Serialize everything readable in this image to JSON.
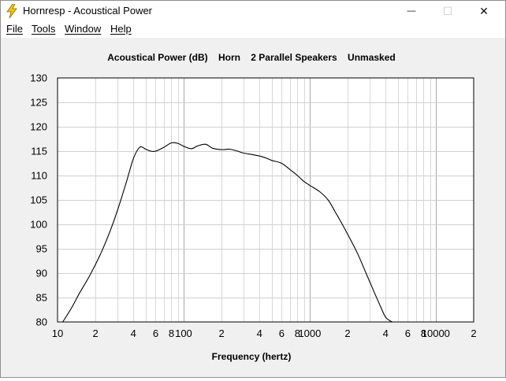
{
  "window": {
    "title": "Hornresp - Acoustical Power",
    "minimize_glyph": "—",
    "maximize_glyph": "☐",
    "close_glyph": "✕"
  },
  "menu": {
    "items": [
      {
        "label": "File"
      },
      {
        "label": "Tools"
      },
      {
        "label": "Window"
      },
      {
        "label": "Help"
      }
    ]
  },
  "chart_data": {
    "type": "line",
    "title": "Acoustical Power (dB)    Horn    2 Parallel Speakers    Unmasked",
    "xlabel": "Frequency (hertz)",
    "ylabel": "",
    "x_scale": "log",
    "xlim": [
      10,
      20000
    ],
    "ylim": [
      80,
      130
    ],
    "grid": true,
    "x_tick_labels": [
      {
        "value": 10,
        "label": "10"
      },
      {
        "value": 20,
        "label": "2"
      },
      {
        "value": 40,
        "label": "4"
      },
      {
        "value": 60,
        "label": "6"
      },
      {
        "value": 80,
        "label": "8"
      },
      {
        "value": 100,
        "label": "100"
      },
      {
        "value": 200,
        "label": "2"
      },
      {
        "value": 400,
        "label": "4"
      },
      {
        "value": 600,
        "label": "6"
      },
      {
        "value": 800,
        "label": "8"
      },
      {
        "value": 1000,
        "label": "1000"
      },
      {
        "value": 2000,
        "label": "2"
      },
      {
        "value": 4000,
        "label": "4"
      },
      {
        "value": 6000,
        "label": "6"
      },
      {
        "value": 8000,
        "label": "8"
      },
      {
        "value": 10000,
        "label": "10000"
      },
      {
        "value": 20000,
        "label": "2"
      }
    ],
    "y_ticks": [
      80,
      85,
      90,
      95,
      100,
      105,
      110,
      115,
      120,
      125,
      130
    ],
    "series": [
      {
        "x": [
          11,
          13,
          15,
          18,
          22,
          26,
          30,
          35,
          40,
          45,
          50,
          55,
          60,
          70,
          80,
          90,
          100,
          115,
          130,
          150,
          170,
          200,
          230,
          260,
          300,
          350,
          400,
          450,
          500,
          600,
          700,
          800,
          900,
          1000,
          1200,
          1400,
          1600,
          2000,
          2400,
          2800,
          3200,
          3600,
          4000,
          4500
        ],
        "y": [
          80,
          83,
          86,
          89.5,
          94,
          98.5,
          103,
          108.5,
          113.5,
          115.8,
          115.4,
          115,
          115,
          115.8,
          116.7,
          116.6,
          116,
          115.5,
          116.1,
          116.4,
          115.6,
          115.3,
          115.4,
          115.1,
          114.6,
          114.3,
          114,
          113.6,
          113.1,
          112.5,
          111.2,
          110,
          108.8,
          108,
          106.7,
          105,
          102.5,
          98,
          94,
          90,
          86.5,
          83.5,
          81,
          80
        ]
      }
    ]
  }
}
